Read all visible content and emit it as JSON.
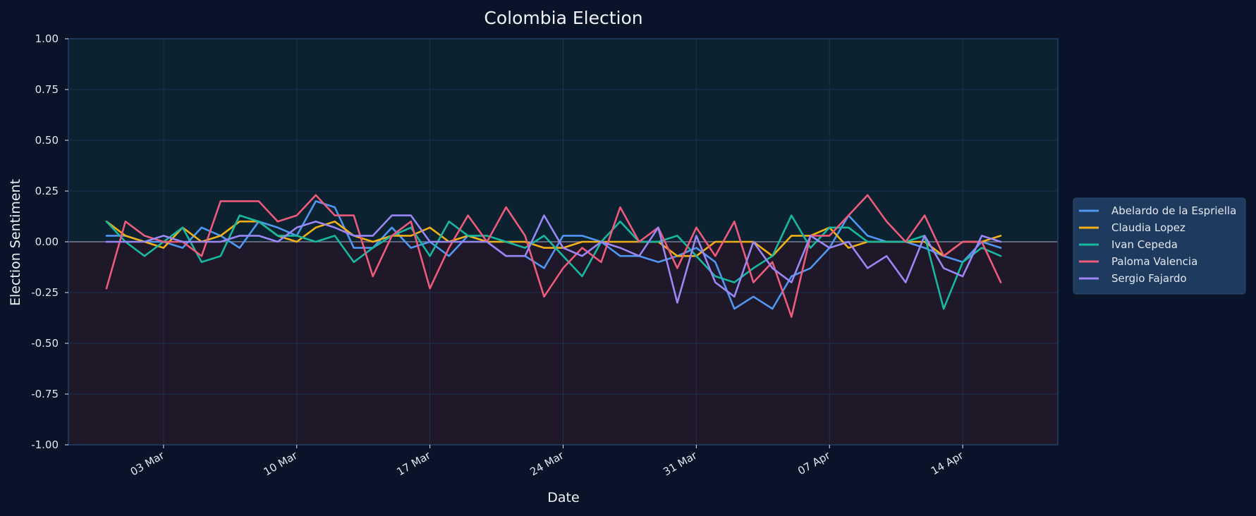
{
  "chart_data": {
    "type": "line",
    "title": "Colombia Election",
    "xlabel": "Date",
    "ylabel": "Election Sentiment",
    "ylim": [
      -1.0,
      1.0
    ],
    "yticks": [
      -1.0,
      -0.75,
      -0.5,
      -0.25,
      0.0,
      0.25,
      0.5,
      0.75,
      1.0
    ],
    "ytick_labels": [
      "-1.00",
      "-0.75",
      "-0.50",
      "-0.25",
      "0.00",
      "0.25",
      "0.50",
      "0.75",
      "1.00"
    ],
    "x_dates": [
      "2026-02-28",
      "2026-03-01",
      "2026-03-02",
      "2026-03-03",
      "2026-03-04",
      "2026-03-05",
      "2026-03-06",
      "2026-03-07",
      "2026-03-08",
      "2026-03-09",
      "2026-03-10",
      "2026-03-11",
      "2026-03-12",
      "2026-03-13",
      "2026-03-14",
      "2026-03-15",
      "2026-03-16",
      "2026-03-17",
      "2026-03-18",
      "2026-03-19",
      "2026-03-20",
      "2026-03-21",
      "2026-03-22",
      "2026-03-23",
      "2026-03-24",
      "2026-03-25",
      "2026-03-26",
      "2026-03-27",
      "2026-03-28",
      "2026-03-29",
      "2026-03-30",
      "2026-03-31",
      "2026-04-01",
      "2026-04-02",
      "2026-04-03",
      "2026-04-04",
      "2026-04-05",
      "2026-04-06",
      "2026-04-07",
      "2026-04-08",
      "2026-04-09",
      "2026-04-10",
      "2026-04-11",
      "2026-04-12",
      "2026-04-13",
      "2026-04-14",
      "2026-04-15",
      "2026-04-16",
      "2026-04-17",
      "2026-04-18"
    ],
    "xlim": [
      "2026-02-26",
      "2026-04-19"
    ],
    "xticks": [
      "2026-03-03",
      "2026-03-10",
      "2026-03-17",
      "2026-03-24",
      "2026-03-31",
      "2026-04-07",
      "2026-04-14"
    ],
    "xtick_labels": [
      "03 Mar",
      "10 Mar",
      "17 Mar",
      "24 Mar",
      "31 Mar",
      "07 Apr",
      "14 Apr"
    ],
    "grid": true,
    "legend_position": "right",
    "positive_region_color": "#0c2230",
    "negative_region_color": "#1e1828",
    "zero_line_color": "#8a93a8",
    "series": [
      {
        "name": "Abelardo de la Espriella",
        "color": "#4f97f2",
        "values": [
          0.03,
          0.03,
          0.0,
          0.0,
          -0.03,
          0.07,
          0.03,
          -0.03,
          0.1,
          0.07,
          0.03,
          0.2,
          0.17,
          -0.03,
          -0.03,
          0.07,
          -0.03,
          0.0,
          -0.07,
          0.03,
          0.0,
          -0.07,
          -0.07,
          -0.13,
          0.03,
          0.03,
          0.0,
          -0.07,
          -0.07,
          -0.1,
          -0.07,
          -0.03,
          -0.1,
          -0.33,
          -0.27,
          -0.33,
          -0.17,
          -0.13,
          -0.03,
          0.13,
          0.03,
          0.0,
          0.0,
          -0.03,
          -0.07,
          -0.1,
          0.0,
          -0.03,
          null,
          null
        ]
      },
      {
        "name": "Claudia Lopez",
        "color": "#f0b018",
        "values": [
          0.1,
          0.03,
          0.0,
          -0.03,
          0.07,
          0.0,
          0.03,
          0.1,
          0.1,
          0.03,
          0.0,
          0.07,
          0.1,
          0.03,
          0.0,
          0.03,
          0.03,
          0.07,
          0.0,
          0.03,
          0.0,
          0.0,
          0.0,
          -0.03,
          -0.03,
          0.0,
          0.0,
          0.0,
          0.0,
          0.0,
          -0.07,
          -0.07,
          0.0,
          0.0,
          0.0,
          -0.07,
          0.03,
          0.03,
          0.07,
          -0.03,
          0.0,
          0.0,
          0.0,
          0.0,
          -0.07,
          0.0,
          0.0,
          0.03,
          null,
          null
        ]
      },
      {
        "name": "Ivan Cepeda",
        "color": "#18b8a0",
        "values": [
          0.1,
          0.0,
          -0.07,
          0.0,
          0.07,
          -0.1,
          -0.07,
          0.13,
          0.1,
          0.03,
          0.03,
          0.0,
          0.03,
          -0.1,
          -0.03,
          0.03,
          0.07,
          -0.07,
          0.1,
          0.03,
          0.03,
          0.0,
          -0.03,
          0.03,
          -0.07,
          -0.17,
          0.0,
          0.1,
          0.0,
          0.0,
          0.03,
          -0.07,
          -0.17,
          -0.2,
          -0.13,
          -0.07,
          0.13,
          -0.03,
          0.07,
          0.07,
          0.0,
          0.0,
          0.0,
          0.03,
          -0.33,
          -0.1,
          -0.03,
          -0.07,
          null,
          null
        ]
      },
      {
        "name": "Paloma Valencia",
        "color": "#ee5a7c",
        "values": [
          -0.23,
          0.1,
          0.03,
          0.0,
          0.0,
          -0.07,
          0.2,
          0.2,
          0.2,
          0.1,
          0.13,
          0.23,
          0.13,
          0.13,
          -0.17,
          0.03,
          0.1,
          -0.23,
          -0.03,
          0.13,
          0.0,
          0.17,
          0.03,
          -0.27,
          -0.13,
          -0.03,
          -0.1,
          0.17,
          0.0,
          0.07,
          -0.13,
          0.07,
          -0.07,
          0.1,
          -0.2,
          -0.1,
          -0.37,
          0.03,
          0.03,
          0.13,
          0.23,
          0.1,
          0.0,
          0.13,
          -0.07,
          0.0,
          0.0,
          -0.2,
          null,
          null
        ]
      },
      {
        "name": "Sergio Fajardo",
        "color": "#9a86f5",
        "values": [
          0.0,
          0.0,
          0.0,
          0.03,
          0.0,
          0.0,
          0.0,
          0.03,
          0.03,
          0.0,
          0.07,
          0.1,
          0.07,
          0.03,
          0.03,
          0.13,
          0.13,
          0.0,
          0.0,
          0.0,
          0.0,
          -0.07,
          -0.07,
          0.13,
          -0.03,
          -0.07,
          0.0,
          -0.03,
          -0.07,
          0.07,
          -0.3,
          0.03,
          -0.2,
          -0.27,
          0.0,
          -0.13,
          -0.2,
          0.03,
          -0.03,
          0.0,
          -0.13,
          -0.07,
          -0.2,
          0.03,
          -0.13,
          -0.17,
          0.03,
          0.0,
          null,
          null
        ]
      }
    ]
  }
}
